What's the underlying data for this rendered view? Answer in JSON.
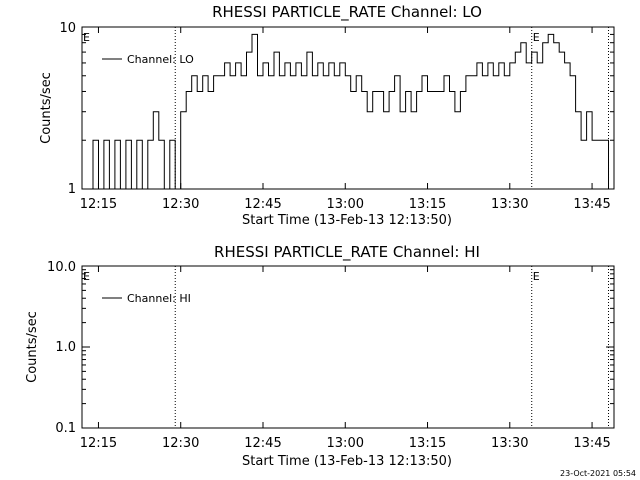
{
  "footer_timestamp": "23-Oct-2021 05:54",
  "chart_data": [
    {
      "type": "line",
      "title": "RHESSI PARTICLE_RATE Channel: LO",
      "xlabel": "Start Time (13-Feb-13 12:13:50)",
      "ylabel": "Counts/sec",
      "yscale": "log",
      "ylim": [
        1,
        10
      ],
      "ytick_labels": [
        "1",
        "10"
      ],
      "xlim_minutes": [
        12.0,
        109.0
      ],
      "xtick_labels": [
        "12:15",
        "12:30",
        "12:45",
        "13:00",
        "13:15",
        "13:30",
        "13:45"
      ],
      "vertical_markers": [
        "12:29",
        "13:34",
        "13:48"
      ],
      "marker_labels": [
        "E",
        "E"
      ],
      "legend_placement": "top-left",
      "series": [
        {
          "name": "Channel: LO",
          "color": "#000000",
          "points": [
            [
              "12:13",
              1
            ],
            [
              "12:14",
              2
            ],
            [
              "12:15",
              1
            ],
            [
              "12:16",
              2
            ],
            [
              "12:17",
              1
            ],
            [
              "12:18",
              2
            ],
            [
              "12:19",
              1
            ],
            [
              "12:20",
              2
            ],
            [
              "12:21",
              1
            ],
            [
              "12:22",
              2
            ],
            [
              "12:23",
              1
            ],
            [
              "12:24",
              2
            ],
            [
              "12:25",
              3
            ],
            [
              "12:26",
              2
            ],
            [
              "12:27",
              1
            ],
            [
              "12:28",
              2
            ],
            [
              "12:29",
              1
            ],
            [
              "12:30",
              3
            ],
            [
              "12:31",
              4
            ],
            [
              "12:32",
              5
            ],
            [
              "12:33",
              4
            ],
            [
              "12:34",
              5
            ],
            [
              "12:35",
              4
            ],
            [
              "12:36",
              5
            ],
            [
              "12:37",
              5
            ],
            [
              "12:38",
              6
            ],
            [
              "12:39",
              5
            ],
            [
              "12:40",
              6
            ],
            [
              "12:41",
              5
            ],
            [
              "12:42",
              7
            ],
            [
              "12:43",
              9
            ],
            [
              "12:44",
              5
            ],
            [
              "12:45",
              6
            ],
            [
              "12:46",
              5
            ],
            [
              "12:47",
              7
            ],
            [
              "12:48",
              5
            ],
            [
              "12:49",
              6
            ],
            [
              "12:50",
              5
            ],
            [
              "12:51",
              6
            ],
            [
              "12:52",
              5
            ],
            [
              "12:53",
              7
            ],
            [
              "12:54",
              5
            ],
            [
              "12:55",
              6
            ],
            [
              "12:56",
              5
            ],
            [
              "12:57",
              6
            ],
            [
              "12:58",
              5
            ],
            [
              "12:59",
              6
            ],
            [
              "13:00",
              5
            ],
            [
              "13:01",
              4
            ],
            [
              "13:02",
              5
            ],
            [
              "13:03",
              4
            ],
            [
              "13:04",
              3
            ],
            [
              "13:05",
              4
            ],
            [
              "13:06",
              4
            ],
            [
              "13:07",
              3
            ],
            [
              "13:08",
              4
            ],
            [
              "13:09",
              5
            ],
            [
              "13:10",
              3
            ],
            [
              "13:11",
              4
            ],
            [
              "13:12",
              3
            ],
            [
              "13:13",
              4
            ],
            [
              "13:14",
              5
            ],
            [
              "13:15",
              4
            ],
            [
              "13:16",
              4
            ],
            [
              "13:17",
              4
            ],
            [
              "13:18",
              5
            ],
            [
              "13:19",
              4
            ],
            [
              "13:20",
              3
            ],
            [
              "13:21",
              4
            ],
            [
              "13:22",
              5
            ],
            [
              "13:23",
              5
            ],
            [
              "13:24",
              6
            ],
            [
              "13:25",
              5
            ],
            [
              "13:26",
              6
            ],
            [
              "13:27",
              5
            ],
            [
              "13:28",
              6
            ],
            [
              "13:29",
              5
            ],
            [
              "13:30",
              6
            ],
            [
              "13:31",
              7
            ],
            [
              "13:32",
              8
            ],
            [
              "13:33",
              6
            ],
            [
              "13:34",
              7
            ],
            [
              "13:35",
              6
            ],
            [
              "13:36",
              8
            ],
            [
              "13:37",
              9
            ],
            [
              "13:38",
              8
            ],
            [
              "13:39",
              7
            ],
            [
              "13:40",
              6
            ],
            [
              "13:41",
              5
            ],
            [
              "13:42",
              3
            ],
            [
              "13:43",
              2
            ],
            [
              "13:44",
              3
            ],
            [
              "13:45",
              2
            ],
            [
              "13:46",
              2
            ],
            [
              "13:47",
              2
            ],
            [
              "13:48",
              1
            ]
          ]
        }
      ]
    },
    {
      "type": "line",
      "title": "RHESSI PARTICLE_RATE Channel: HI",
      "xlabel": "Start Time (13-Feb-13 12:13:50)",
      "ylabel": "Counts/sec",
      "yscale": "log",
      "ylim": [
        0.1,
        10
      ],
      "ytick_labels": [
        "0.1",
        "1.0",
        "10.0"
      ],
      "xlim_minutes": [
        12.0,
        109.0
      ],
      "xtick_labels": [
        "12:15",
        "12:30",
        "12:45",
        "13:00",
        "13:15",
        "13:30",
        "13:45"
      ],
      "vertical_markers": [
        "12:29",
        "13:34",
        "13:48"
      ],
      "marker_labels": [
        "E",
        "E"
      ],
      "legend_placement": "top-left",
      "series": [
        {
          "name": "Channel: HI",
          "color": "#000000",
          "points": []
        }
      ]
    }
  ]
}
